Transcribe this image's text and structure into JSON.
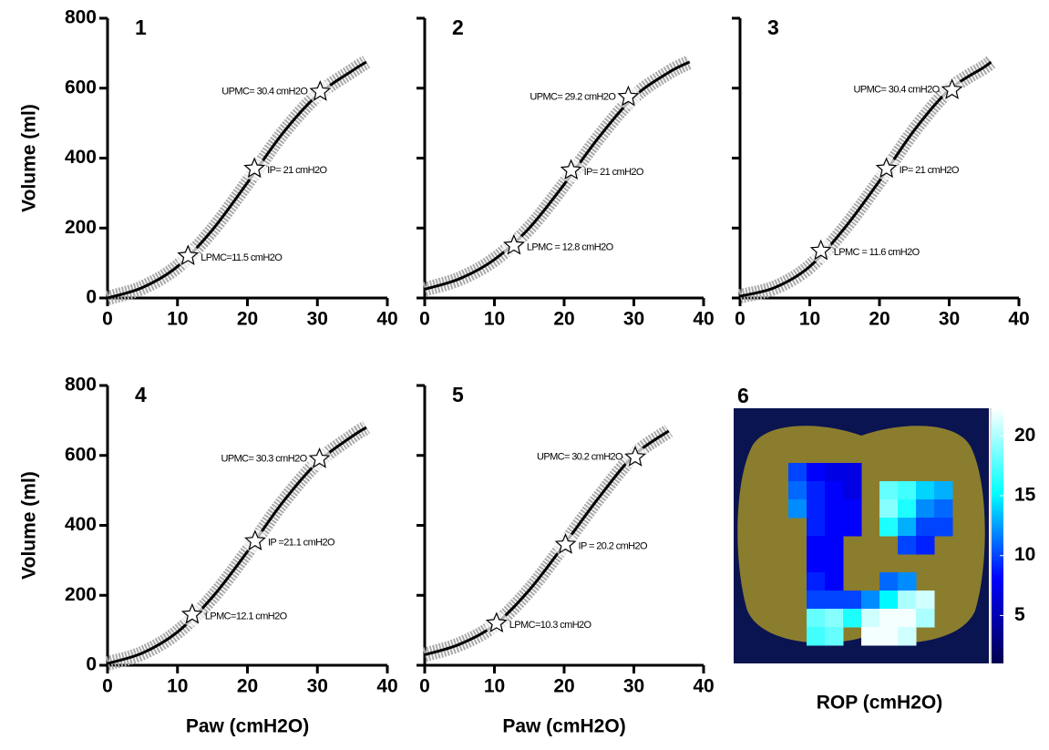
{
  "chart_data": [
    {
      "type": "line",
      "title": "1",
      "ylabel": "Volume (ml)",
      "x": [
        0,
        5,
        10,
        15,
        20,
        25,
        30,
        35,
        37
      ],
      "values": [
        0,
        30,
        90,
        195,
        330,
        470,
        580,
        650,
        675
      ],
      "line_color": "#000000",
      "point_color": "#a9a9a9",
      "xlim": [
        0,
        40
      ],
      "ylim": [
        0,
        800
      ],
      "xticks": [
        0,
        10,
        20,
        30,
        40
      ],
      "yticks": [
        0,
        200,
        400,
        600,
        800
      ],
      "annotations": [
        {
          "x": 30.4,
          "y": 590,
          "label": "UPMC= 30.4 cmH2O"
        },
        {
          "x": 21,
          "y": 370,
          "label": "IP= 21 cmH2O"
        },
        {
          "x": 11.5,
          "y": 120,
          "label": "LPMC=11.5 cmH2O"
        }
      ]
    },
    {
      "type": "line",
      "title": "2",
      "x": [
        0,
        5,
        10,
        15,
        20,
        25,
        30,
        35,
        38
      ],
      "values": [
        25,
        55,
        110,
        200,
        325,
        460,
        575,
        645,
        675
      ],
      "line_color": "#000000",
      "point_color": "#a9a9a9",
      "xlim": [
        0,
        40
      ],
      "ylim": [
        0,
        800
      ],
      "xticks": [
        0,
        10,
        20,
        30,
        40
      ],
      "yticks": [
        0,
        200,
        400,
        600,
        800
      ],
      "annotations": [
        {
          "x": 29.2,
          "y": 575,
          "label": "UPMC= 29.2 cmH2O"
        },
        {
          "x": 21,
          "y": 365,
          "label": "IP= 21 cmH2O"
        },
        {
          "x": 12.8,
          "y": 150,
          "label": "LPMC = 12.8 cmH2O"
        }
      ]
    },
    {
      "type": "line",
      "title": "3",
      "x": [
        0,
        5,
        10,
        15,
        20,
        25,
        30,
        35,
        36
      ],
      "values": [
        5,
        30,
        90,
        200,
        335,
        480,
        595,
        660,
        675
      ],
      "line_color": "#000000",
      "point_color": "#a9a9a9",
      "xlim": [
        0,
        40
      ],
      "ylim": [
        0,
        800
      ],
      "xticks": [
        0,
        10,
        20,
        30,
        40
      ],
      "yticks": [
        0,
        200,
        400,
        600,
        800
      ],
      "annotations": [
        {
          "x": 30.4,
          "y": 595,
          "label": "UPMC= 30.4 cmH2O"
        },
        {
          "x": 21,
          "y": 370,
          "label": "IP= 21 cmH2O"
        },
        {
          "x": 11.6,
          "y": 135,
          "label": "LPMC = 11.6 cmH2O"
        }
      ]
    },
    {
      "type": "line",
      "title": "4",
      "ylabel": "Volume (ml)",
      "xlabel": "Paw (cmH2O)",
      "x": [
        0,
        5,
        10,
        15,
        20,
        25,
        30,
        35,
        37
      ],
      "values": [
        5,
        35,
        95,
        195,
        325,
        465,
        580,
        655,
        680
      ],
      "line_color": "#000000",
      "point_color": "#a9a9a9",
      "xlim": [
        0,
        40
      ],
      "ylim": [
        0,
        800
      ],
      "xticks": [
        0,
        10,
        20,
        30,
        40
      ],
      "yticks": [
        0,
        200,
        400,
        600,
        800
      ],
      "annotations": [
        {
          "x": 30.3,
          "y": 590,
          "label": "UPMC= 30.3 cmH2O"
        },
        {
          "x": 21.1,
          "y": 355,
          "label": "IP =21.1 cmH2O"
        },
        {
          "x": 12.1,
          "y": 145,
          "label": "LPMC=12.1 cmH2O"
        }
      ]
    },
    {
      "type": "line",
      "title": "5",
      "xlabel": "Paw (cmH2O)",
      "x": [
        0,
        5,
        10,
        15,
        20,
        25,
        30,
        35
      ],
      "values": [
        30,
        60,
        115,
        215,
        345,
        480,
        600,
        670
      ],
      "line_color": "#000000",
      "point_color": "#a9a9a9",
      "xlim": [
        0,
        40
      ],
      "ylim": [
        0,
        800
      ],
      "xticks": [
        0,
        10,
        20,
        30,
        40
      ],
      "yticks": [
        0,
        200,
        400,
        600,
        800
      ],
      "annotations": [
        {
          "x": 30.2,
          "y": 595,
          "label": "UPMC= 30.2 cmH2O"
        },
        {
          "x": 20.2,
          "y": 345,
          "label": "IP = 20.2 cmH2O"
        },
        {
          "x": 10.3,
          "y": 120,
          "label": "LPMC=10.3 cmH2O"
        }
      ]
    },
    {
      "type": "heatmap",
      "title": "6",
      "xlabel": "ROP (cmH2O)",
      "clim": [
        1,
        22.3
      ],
      "cticks": [
        5,
        10,
        15,
        20
      ],
      "colormap": [
        "#000050",
        "#0000ff",
        "#00ffff",
        "#ffffff"
      ],
      "z": [
        [
          null,
          null,
          null,
          null,
          null,
          null,
          null,
          null,
          null,
          null,
          null,
          null,
          null,
          null
        ],
        [
          null,
          null,
          null,
          null,
          null,
          null,
          null,
          null,
          null,
          null,
          null,
          null,
          null,
          null
        ],
        [
          null,
          null,
          null,
          null,
          null,
          null,
          null,
          null,
          null,
          null,
          null,
          null,
          null,
          null
        ],
        [
          null,
          null,
          null,
          10,
          8,
          7,
          7,
          null,
          null,
          null,
          null,
          null,
          null,
          null
        ],
        [
          null,
          null,
          null,
          11,
          9,
          8,
          7,
          null,
          18,
          17,
          14,
          13,
          null,
          null
        ],
        [
          null,
          null,
          null,
          12,
          9,
          8,
          8,
          null,
          19,
          16,
          12,
          11,
          null,
          null
        ],
        [
          null,
          null,
          null,
          null,
          9,
          8,
          8,
          null,
          16,
          13,
          10,
          10,
          null,
          null
        ],
        [
          null,
          null,
          null,
          null,
          8,
          8,
          null,
          null,
          null,
          10,
          9,
          null,
          null,
          null
        ],
        [
          null,
          null,
          null,
          null,
          8,
          8,
          null,
          null,
          null,
          null,
          null,
          null,
          null,
          null
        ],
        [
          null,
          null,
          null,
          null,
          9,
          8,
          null,
          null,
          11,
          12,
          null,
          null,
          null,
          null
        ],
        [
          null,
          null,
          null,
          null,
          10,
          10,
          10,
          12,
          15,
          20,
          21,
          null,
          null,
          null
        ],
        [
          null,
          null,
          null,
          null,
          18,
          19,
          16,
          21,
          22,
          22,
          20,
          null,
          null,
          null
        ],
        [
          null,
          null,
          null,
          null,
          17,
          18,
          null,
          22,
          22,
          21,
          null,
          null,
          null,
          null
        ],
        [
          null,
          null,
          null,
          null,
          null,
          null,
          null,
          null,
          null,
          null,
          null,
          null,
          null,
          null
        ]
      ]
    }
  ]
}
